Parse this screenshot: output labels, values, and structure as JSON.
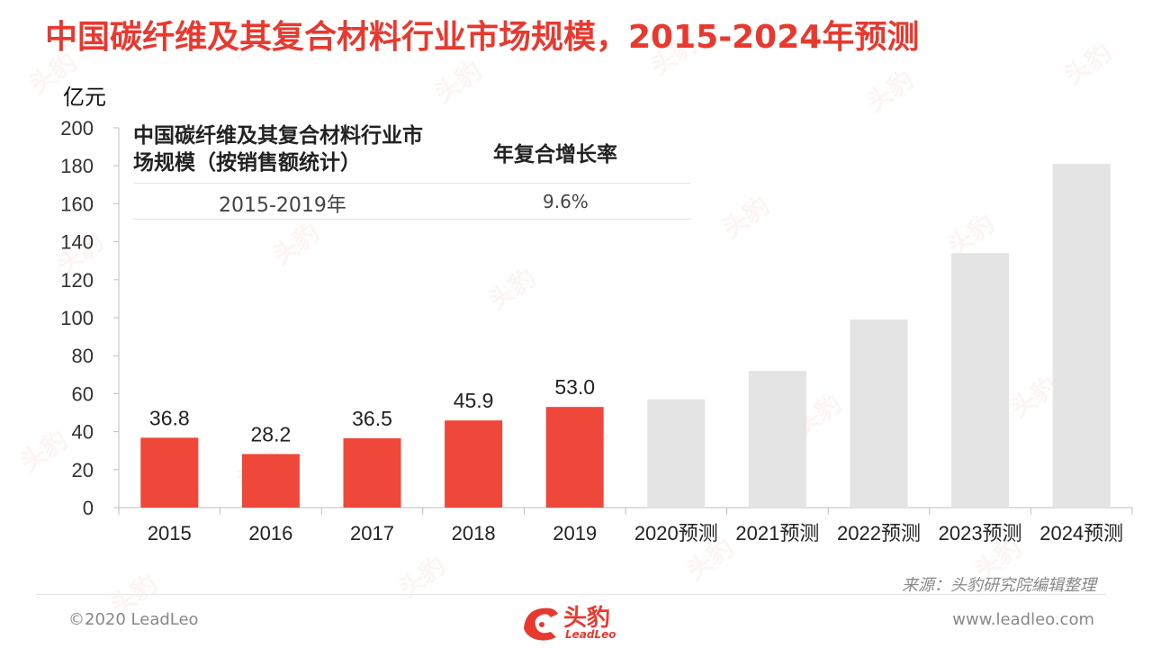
{
  "title": "中国碳纤维及其复合材料行业市场规模，2015-2024年预测",
  "unit_label": "亿元",
  "legend": {
    "header_left": "中国碳纤维及其复合材料行业市场规模（按销售额统计）",
    "header_right": "年复合增长率",
    "period": "2015-2019年",
    "rate": "9.6%"
  },
  "source": "来源：头豹研究院编辑整理",
  "footer": {
    "copyright": "©2020 LeadLeo",
    "website": "www.leadleo.com",
    "logo_text": "头豹",
    "logo_sub": "LeadLeo"
  },
  "watermark_text": "头豹",
  "colors": {
    "accent": "#e8392f",
    "actual_bar": "#ef473a",
    "forecast_bar": "#e4e4e4"
  },
  "chart_data": {
    "type": "bar",
    "categories": [
      "2015",
      "2016",
      "2017",
      "2018",
      "2019",
      "2020预测",
      "2021预测",
      "2022预测",
      "2023预测",
      "2024预测"
    ],
    "values": [
      36.8,
      28.2,
      36.5,
      45.9,
      53.0,
      57,
      72,
      99,
      134,
      181
    ],
    "value_labels": [
      "36.8",
      "28.2",
      "36.5",
      "45.9",
      "53.0",
      "",
      "",
      "",
      "",
      ""
    ],
    "forecast": [
      false,
      false,
      false,
      false,
      false,
      true,
      true,
      true,
      true,
      true
    ],
    "ylabel": "亿元",
    "ylim": [
      0,
      200
    ],
    "yticks": [
      0,
      20,
      40,
      60,
      80,
      100,
      120,
      140,
      160,
      180,
      200
    ],
    "grid": false
  }
}
